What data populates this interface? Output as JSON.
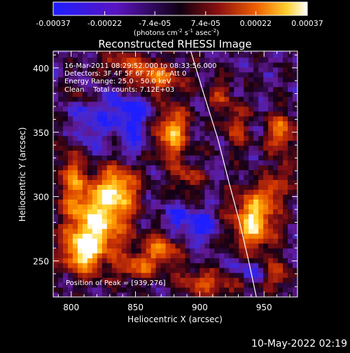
{
  "chart_data": {
    "type": "heatmap",
    "title": "Reconstructed RHESSI Image",
    "xlabel": "Heliocentric X (arcsec)",
    "ylabel": "Heliocentric Y (arcsec)",
    "xlim": [
      786,
      976
    ],
    "ylim": [
      222,
      413
    ],
    "x_ticks": [
      800,
      850,
      900,
      950
    ],
    "y_ticks": [
      250,
      300,
      350,
      400
    ],
    "colorbar": {
      "ticks": [
        "-0.00037",
        "-0.00022",
        "-7.4e-05",
        "7.4e-05",
        "0.00022",
        "0.00037"
      ],
      "range": [
        -0.00037,
        0.00037
      ],
      "units_main": "(photons cm",
      "units_exp1": "-2",
      "units_mid1": " s",
      "units_exp2": "-1",
      "units_mid2": " asec",
      "units_exp3": "-2",
      "units_end": ")"
    },
    "annotations": {
      "time_range": "16-Mar-2011 08:29:52.000 to 08:33:56.000",
      "detectors": "Detectors: 3F 4F 5F 6F 7F 8F, Att 0",
      "energy": "Energy Range: 25.0 - 50.0 keV",
      "clean": "Clean    Total counts: 7.12E+03",
      "peak": "Position of Peak = [939,276]"
    },
    "limb": [
      [
        893,
        413
      ],
      [
        903,
        380
      ],
      [
        914,
        345
      ],
      [
        923,
        310
      ],
      [
        931,
        280
      ],
      [
        938,
        250
      ],
      [
        944,
        222
      ]
    ],
    "blobs": [
      {
        "x": 822,
        "y": 283,
        "sx": 16,
        "sy": 22,
        "a": 1.0
      },
      {
        "x": 808,
        "y": 257,
        "sx": 10,
        "sy": 12,
        "a": 0.9
      },
      {
        "x": 838,
        "y": 307,
        "sx": 10,
        "sy": 12,
        "a": 0.7
      },
      {
        "x": 800,
        "y": 318,
        "sx": 8,
        "sy": 20,
        "a": 0.55
      },
      {
        "x": 870,
        "y": 258,
        "sx": 10,
        "sy": 10,
        "a": 0.7
      },
      {
        "x": 850,
        "y": 245,
        "sx": 9,
        "sy": 7,
        "a": 0.55
      },
      {
        "x": 878,
        "y": 350,
        "sx": 9,
        "sy": 14,
        "a": 0.9
      },
      {
        "x": 890,
        "y": 315,
        "sx": 8,
        "sy": 9,
        "a": 0.45
      },
      {
        "x": 865,
        "y": 392,
        "sx": 16,
        "sy": 9,
        "a": 0.65
      },
      {
        "x": 840,
        "y": 405,
        "sx": 14,
        "sy": 6,
        "a": 0.45
      },
      {
        "x": 928,
        "y": 355,
        "sx": 7,
        "sy": 12,
        "a": 0.5
      },
      {
        "x": 915,
        "y": 380,
        "sx": 7,
        "sy": 9,
        "a": 0.4
      },
      {
        "x": 942,
        "y": 282,
        "sx": 12,
        "sy": 16,
        "a": 1.05
      },
      {
        "x": 958,
        "y": 305,
        "sx": 7,
        "sy": 8,
        "a": 0.5
      },
      {
        "x": 963,
        "y": 350,
        "sx": 8,
        "sy": 11,
        "a": 0.7
      },
      {
        "x": 966,
        "y": 322,
        "sx": 5,
        "sy": 6,
        "a": 0.4
      },
      {
        "x": 915,
        "y": 232,
        "sx": 13,
        "sy": 7,
        "a": 0.5
      },
      {
        "x": 895,
        "y": 235,
        "sx": 10,
        "sy": 6,
        "a": 0.4
      },
      {
        "x": 960,
        "y": 240,
        "sx": 7,
        "sy": 8,
        "a": 0.5
      },
      {
        "x": 806,
        "y": 380,
        "sx": 5,
        "sy": 5,
        "a": 0.35
      },
      {
        "x": 850,
        "y": 340,
        "sx": 6,
        "sy": 6,
        "a": -0.35
      },
      {
        "x": 845,
        "y": 365,
        "sx": 12,
        "sy": 12,
        "a": -0.5
      },
      {
        "x": 812,
        "y": 352,
        "sx": 10,
        "sy": 16,
        "a": -0.35
      },
      {
        "x": 900,
        "y": 278,
        "sx": 9,
        "sy": 8,
        "a": -0.45
      },
      {
        "x": 935,
        "y": 243,
        "sx": 10,
        "sy": 6,
        "a": -0.35
      },
      {
        "x": 880,
        "y": 282,
        "sx": 8,
        "sy": 8,
        "a": -0.3
      }
    ]
  },
  "footer_date": "10-May-2022 02:19"
}
